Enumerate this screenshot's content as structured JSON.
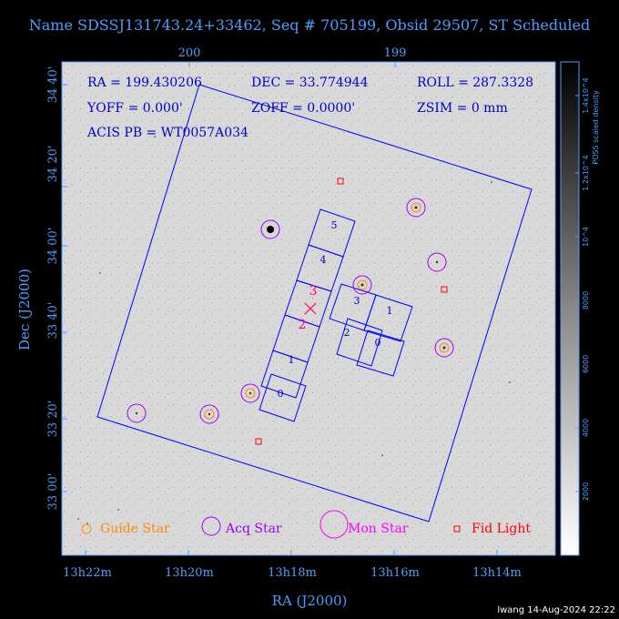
{
  "title": "Name SDSSJ131743.24+33462, Seq # 705199, Obsid 29507, ST Scheduled",
  "timestamp": "lwang 14-Aug-2024 22:22",
  "colors": {
    "axis": "#4aa0ff",
    "guide": "#ff8c00",
    "acq": "#9900ff",
    "mon": "#ff00ff",
    "fid": "#ff0000",
    "fov": "#0000ff",
    "field_bg": "#dcdcdc"
  },
  "plot": {
    "info": {
      "ra": "RA = 199.430206",
      "dec": "DEC = 33.774944",
      "roll": "ROLL = 287.3328",
      "yoff": "YOFF =   0.000'",
      "zoff": "ZOFF =   0.0000'",
      "zsim": "ZSIM = 0 mm",
      "acis": "ACIS PB = WT0057A034"
    },
    "x_axis_label": "RA (J2000)",
    "y_axis_label": "Dec (J2000)",
    "x_ticks": [
      "13h22m",
      "13h20m",
      "13h18m",
      "13h16m",
      "13h14m"
    ],
    "y_ticks": [
      "34 40'",
      "34 20'",
      "34 00'",
      "33 40'",
      "33 20'",
      "33 00'"
    ],
    "top_ticks": [
      "200",
      "199"
    ],
    "chip_labels_i": [
      "5",
      "4",
      "3",
      "2",
      "1",
      "0"
    ],
    "chip_labels_s": [
      "3",
      "1",
      "2",
      "0"
    ],
    "fid_numbers": [
      "3",
      "2"
    ]
  },
  "legend": {
    "guide": "Guide Star",
    "acq": "Acq Star",
    "mon": "Mon Star",
    "fid": "Fid Light"
  },
  "colorbar": {
    "label": "POSS scaled density",
    "ticks": [
      "1.4x10^4",
      "1.2x10^4",
      "10^4",
      "8000",
      "6000",
      "4000",
      "2000"
    ]
  }
}
